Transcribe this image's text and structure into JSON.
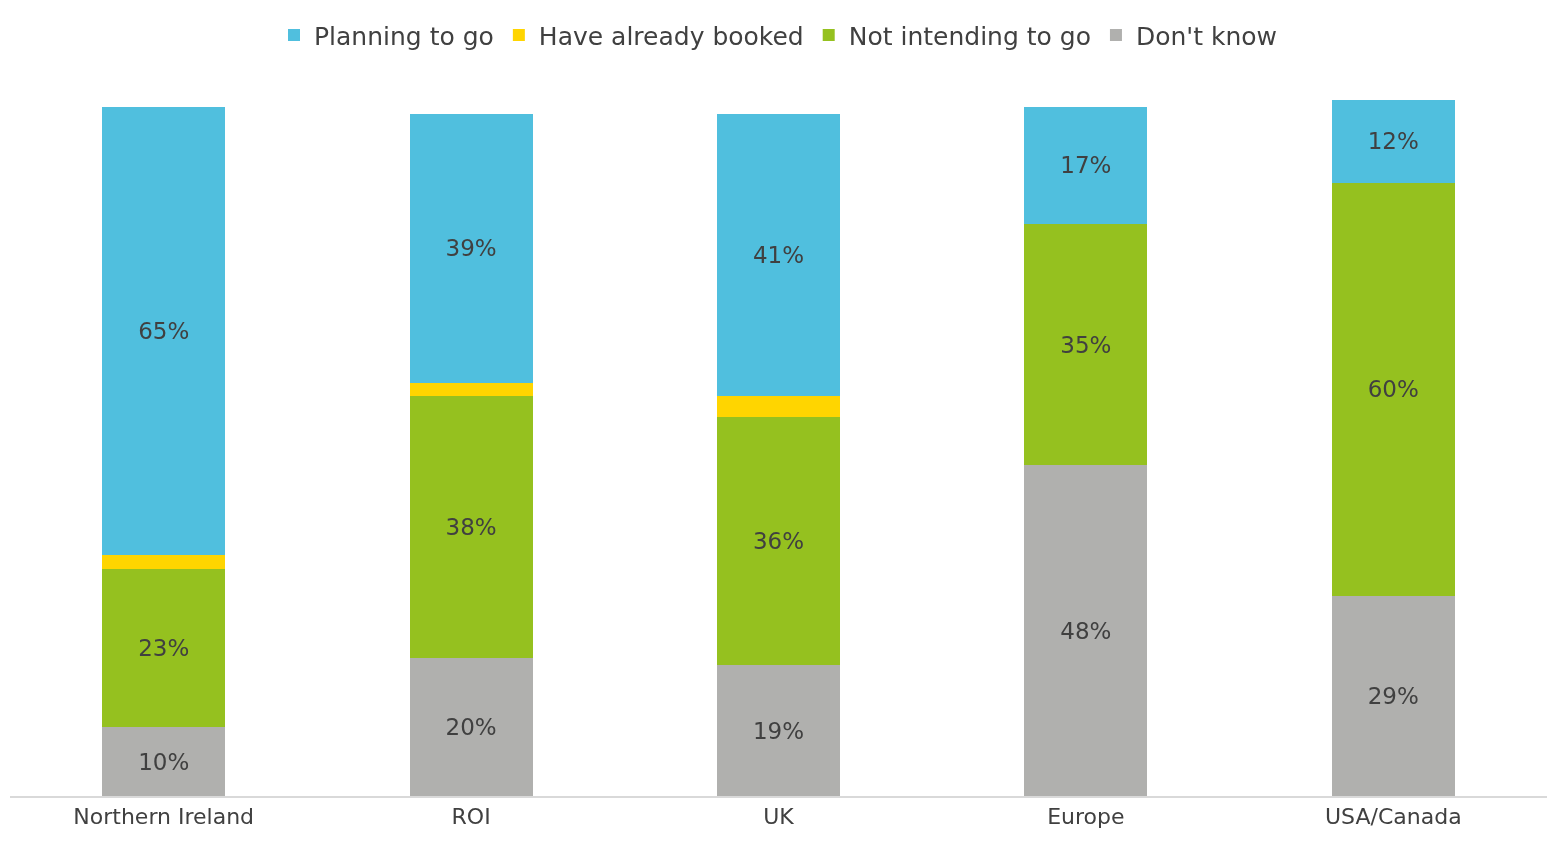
{
  "chart_data": {
    "type": "bar",
    "stacked": true,
    "categories": [
      "Northern Ireland",
      "ROI",
      "UK",
      "Europe",
      "USA/Canada"
    ],
    "series": [
      {
        "name": "Don't know",
        "color": "#b0b0ae",
        "values": [
          10,
          20,
          19,
          48,
          29
        ],
        "value_labels": [
          "10%",
          "20%",
          "19%",
          "48%",
          "29%"
        ]
      },
      {
        "name": "Not intending to go",
        "color": "#95c11f",
        "values": [
          23,
          38,
          36,
          35,
          60
        ],
        "value_labels": [
          "23%",
          "38%",
          "36%",
          "35%",
          "60%"
        ]
      },
      {
        "name": "Have already booked",
        "color": "#ffd500",
        "values": [
          2,
          2,
          3,
          0,
          0
        ],
        "value_labels": [
          null,
          null,
          null,
          null,
          null
        ]
      },
      {
        "name": "Planning to go",
        "color": "#50bfde",
        "values": [
          65,
          39,
          41,
          17,
          12
        ],
        "value_labels": [
          "65%",
          "39%",
          "41%",
          "17%",
          "12%"
        ]
      }
    ],
    "ylim": [
      0,
      101
    ],
    "tick_labels": "x",
    "grid": false,
    "legend": "top"
  }
}
